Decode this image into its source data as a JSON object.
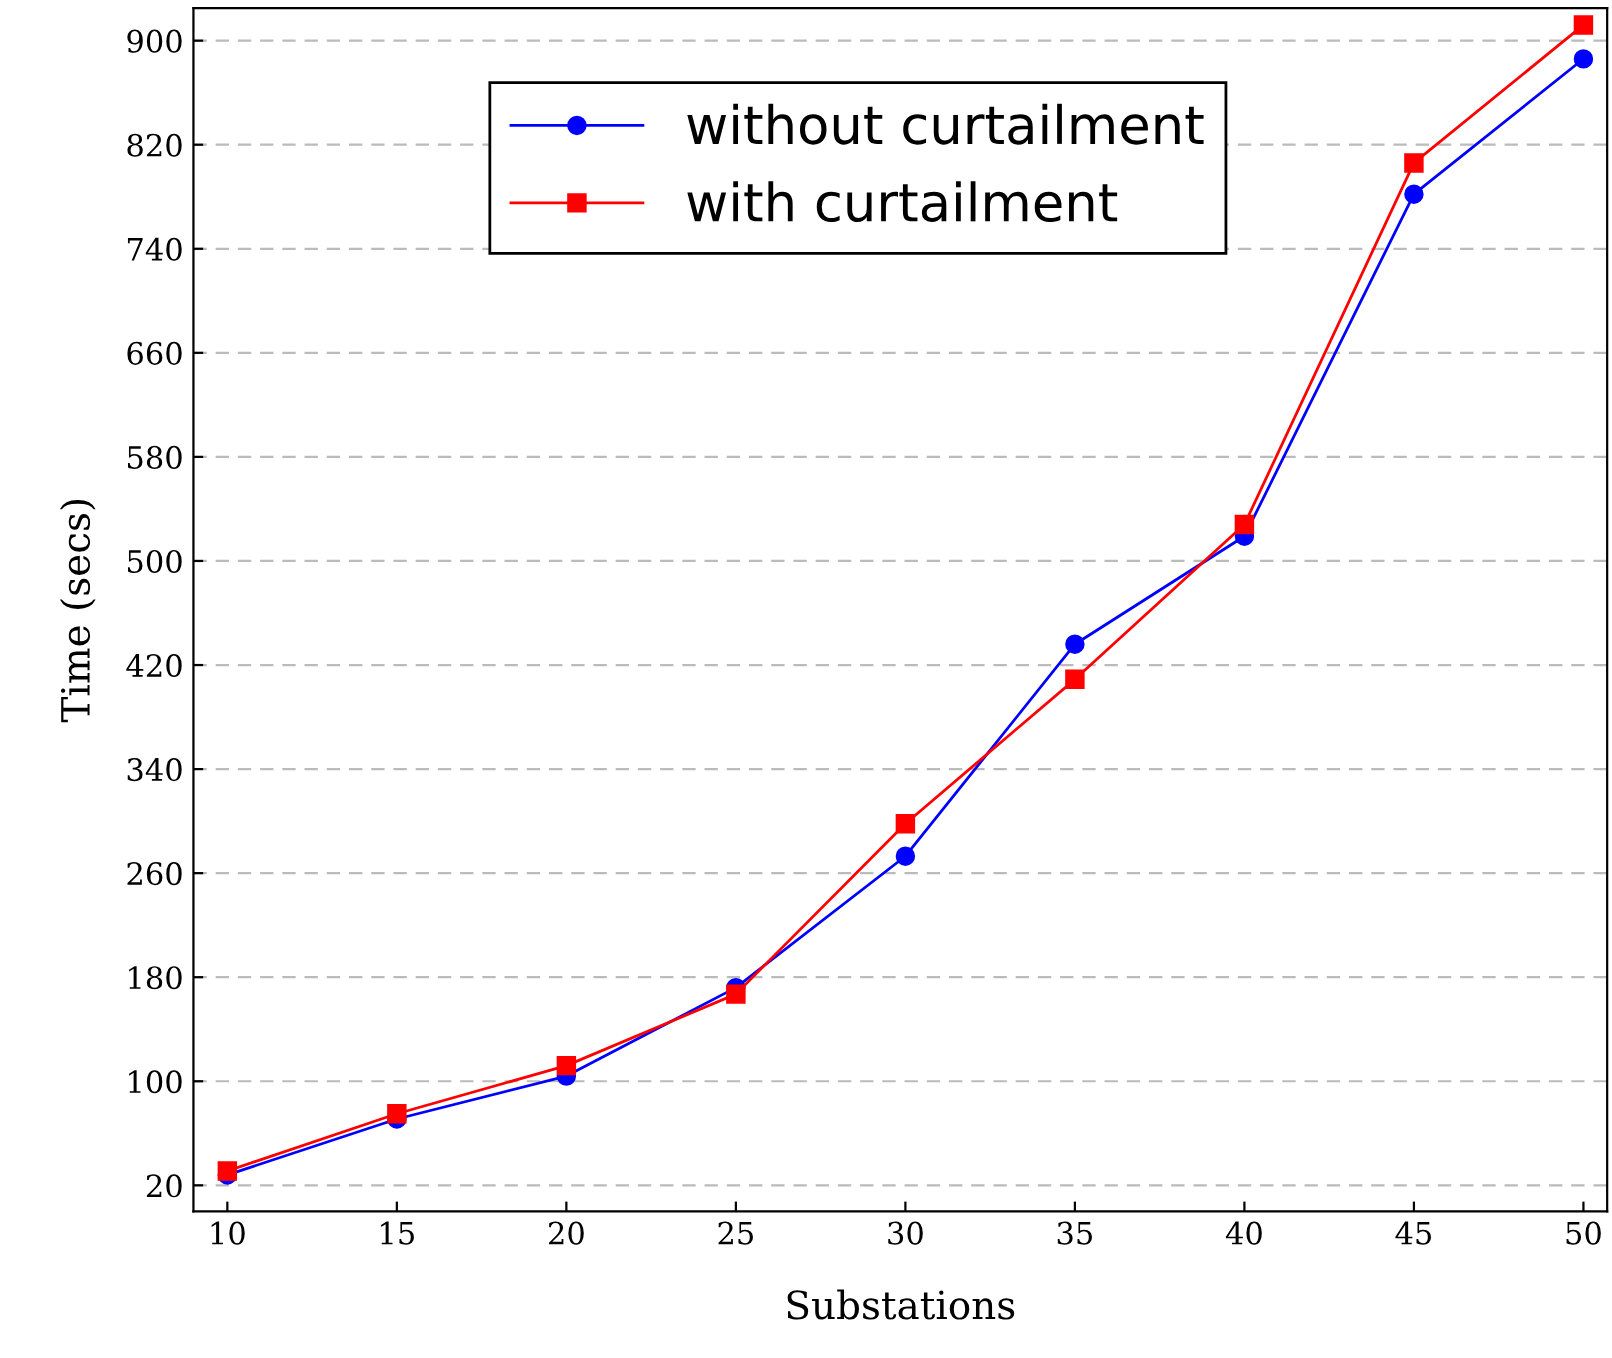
{
  "chart_data": {
    "type": "line",
    "xlabel": "Substations",
    "ylabel": "Time (secs)",
    "x": [
      10,
      15,
      20,
      25,
      30,
      35,
      40,
      45,
      50
    ],
    "series": [
      {
        "name": "without curtailment",
        "color": "#0000ff",
        "marker": "circle",
        "values": [
          28,
          71,
          104,
          172,
          273,
          436,
          519,
          782,
          886
        ]
      },
      {
        "name": "with curtailment",
        "color": "#ff0000",
        "marker": "square",
        "values": [
          31,
          75,
          112,
          167,
          298,
          409,
          528,
          806,
          912
        ]
      }
    ],
    "xlim": [
      9,
      50.7
    ],
    "xticks": [
      10,
      15,
      20,
      25,
      30,
      35,
      40,
      45,
      50
    ],
    "ylim": [
      0,
      925
    ],
    "yticks": [
      20,
      100,
      180,
      260,
      340,
      420,
      500,
      580,
      660,
      740,
      820,
      900
    ],
    "grid": "y",
    "legend": "top",
    "line_style": "solid"
  }
}
